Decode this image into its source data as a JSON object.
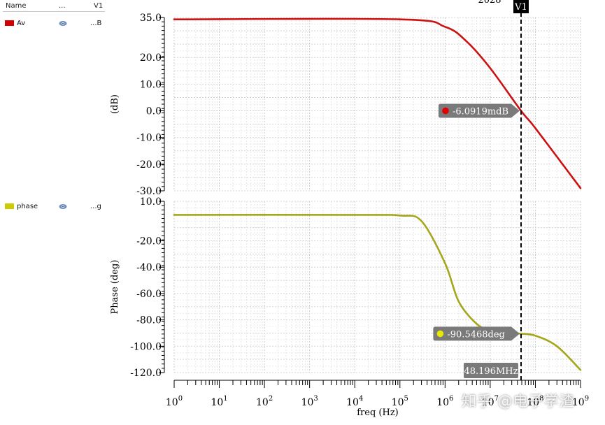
{
  "legend": {
    "headers": {
      "name": "Name",
      "vis": "...",
      "cursor": "V1"
    },
    "rows": [
      {
        "label": "Av",
        "value": "...B",
        "color": "#d40000"
      },
      {
        "label": "phase",
        "value": "...g",
        "color": "#cccc00"
      }
    ]
  },
  "top_clipped_label": "2028",
  "watermark": "知乎 @电子学渣",
  "chart_data": [
    {
      "type": "line",
      "name": "Av",
      "ylabel": "(dB)",
      "ylim": [
        -30,
        35
      ],
      "yticks": [
        35,
        20,
        10,
        0,
        -10,
        -20,
        -30
      ],
      "ytick_labels": [
        "35.0",
        "20.0",
        "10.0",
        "0.0",
        "-10.0",
        "-20.0",
        "-30.0"
      ],
      "color": "#cc1111",
      "x": [
        1,
        100000.0,
        1000000.0,
        3000000.0,
        10000000.0,
        48196000.0,
        100000000.0,
        1000000000.0
      ],
      "y": [
        34.3,
        34.3,
        31.5,
        26,
        16,
        0,
        -6.5,
        -29
      ],
      "marker": {
        "x": 48196000.0,
        "label": "-6.0919mdB",
        "dot_color": "#e00000"
      }
    },
    {
      "type": "line",
      "name": "phase",
      "ylabel": "Phase (deg)",
      "ylim": [
        -120,
        10
      ],
      "yticks": [
        10,
        -20,
        -40,
        -60,
        -80,
        -100,
        -120
      ],
      "ytick_labels": [
        "10.0",
        "-20.0",
        "-40.0",
        "-60.0",
        "-80.0",
        "-100.0",
        "-120.0"
      ],
      "color": "#a6a61a",
      "x": [
        1,
        10000.0,
        100000.0,
        300000.0,
        1000000.0,
        2000000.0,
        5000000.0,
        10000000.0,
        20000000.0,
        48196000.0,
        100000000.0,
        300000000.0,
        1000000000.0
      ],
      "y": [
        -0.3,
        -0.3,
        -0.8,
        -5,
        -37,
        -66,
        -83,
        -88,
        -89.5,
        -90.5,
        -92,
        -100,
        -118
      ],
      "marker": {
        "x": 48196000.0,
        "label": "-90.5468deg",
        "dot_color": "#e8e800"
      }
    }
  ],
  "x_axis": {
    "label": "freq (Hz)",
    "scale": "log",
    "xlim": [
      1,
      1000000000.0
    ],
    "tick_base": "10",
    "tick_exponents": [
      "0",
      "1",
      "2",
      "3",
      "4",
      "5",
      "6",
      "7",
      "8",
      "9"
    ]
  },
  "cursor": {
    "name": "V1",
    "x": 48196000.0,
    "label": "48.196MHz"
  }
}
